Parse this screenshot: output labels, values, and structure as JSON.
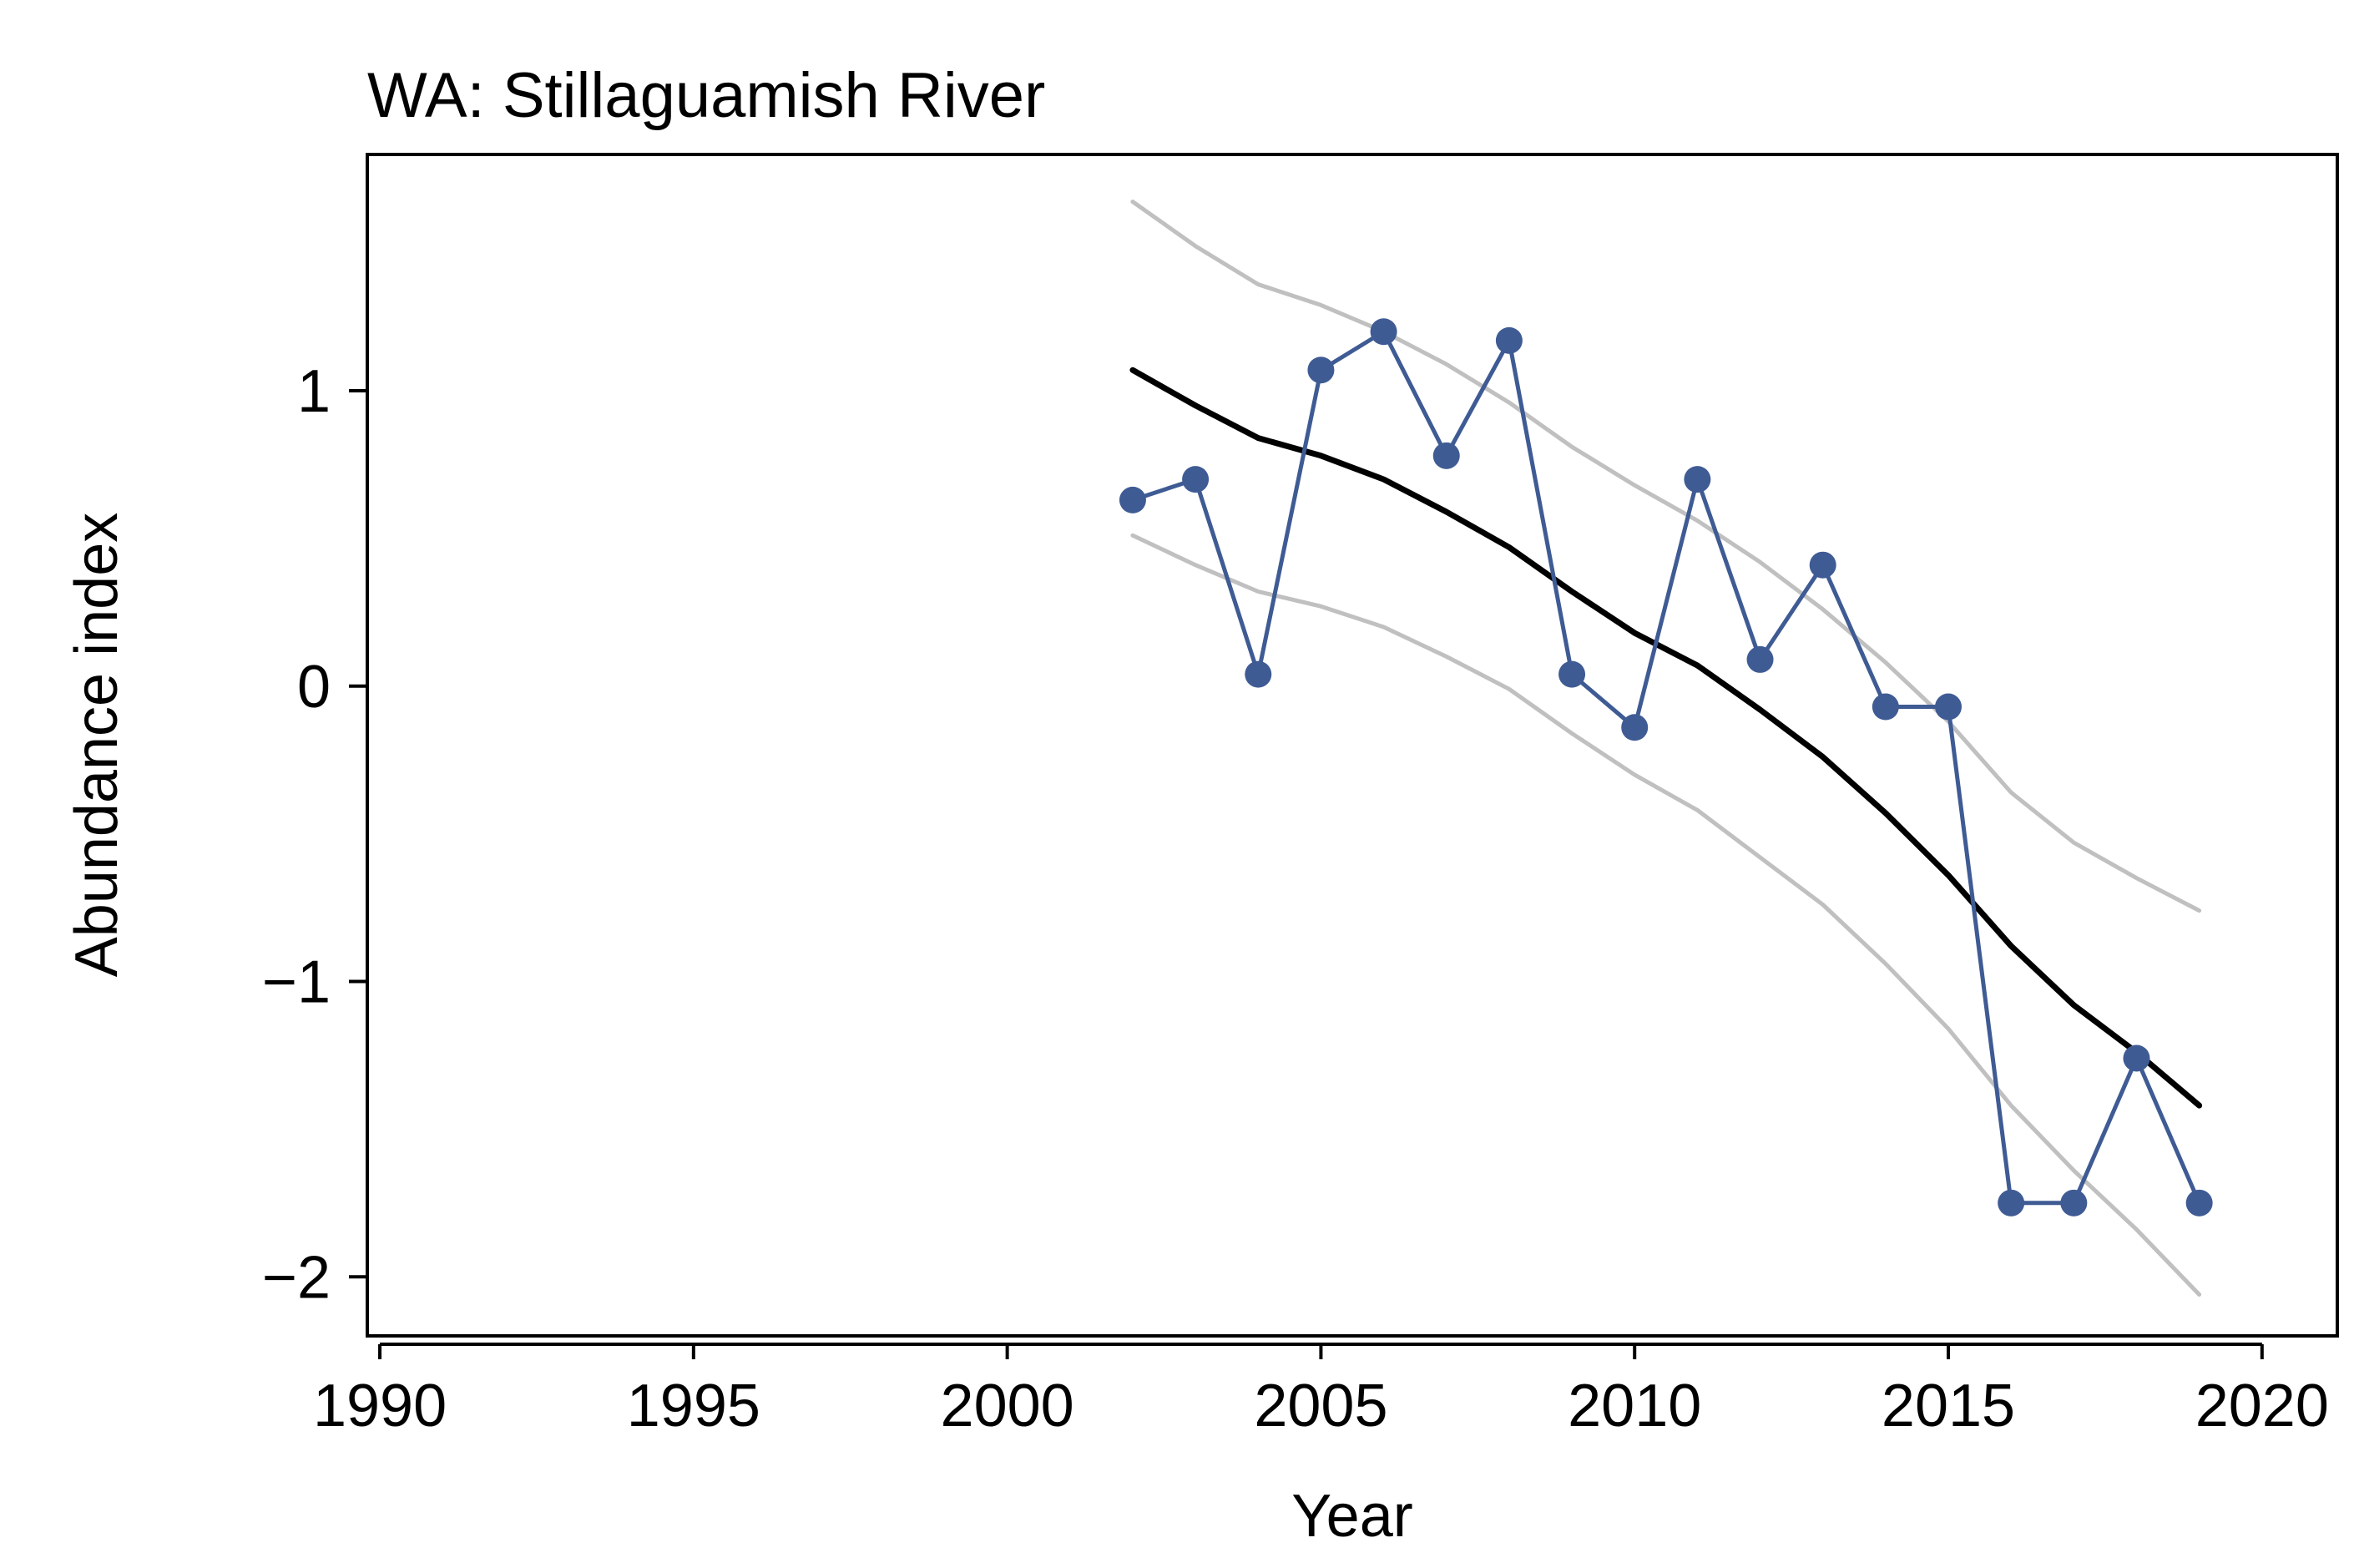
{
  "chart_data": {
    "type": "line",
    "title": "WA: Stillaguamish River",
    "xlabel": "Year",
    "ylabel": "Abundance index",
    "xlim": [
      1989.8,
      2021.2
    ],
    "ylim": [
      -2.2,
      1.8
    ],
    "xticks": [
      1990,
      1995,
      2000,
      2005,
      2010,
      2015,
      2020
    ],
    "xtick_labels": [
      "1990",
      "1995",
      "2000",
      "2005",
      "2010",
      "2015",
      "2020"
    ],
    "yticks": [
      -2,
      -1,
      0,
      1
    ],
    "ytick_labels": [
      "−2",
      "−1",
      "0",
      "1"
    ],
    "grid": false,
    "x": [
      2002,
      2003,
      2004,
      2005,
      2006,
      2007,
      2008,
      2009,
      2010,
      2011,
      2012,
      2013,
      2014,
      2015,
      2016,
      2017,
      2018,
      2019
    ],
    "series": [
      {
        "role": "observed",
        "color": "#3f5b94",
        "values": [
          0.63,
          0.7,
          0.04,
          1.07,
          1.2,
          0.78,
          1.17,
          0.04,
          -0.14,
          0.7,
          0.09,
          0.41,
          -0.07,
          -0.07,
          -1.75,
          -1.75,
          -1.26,
          -1.75
        ]
      },
      {
        "role": "trend",
        "color": "#000000",
        "values": [
          1.07,
          0.95,
          0.84,
          0.78,
          0.7,
          0.59,
          0.47,
          0.32,
          0.18,
          0.07,
          -0.08,
          -0.24,
          -0.43,
          -0.64,
          -0.88,
          -1.08,
          -1.24,
          -1.42
        ]
      },
      {
        "role": "upper-bound",
        "color": "#c0c0c0",
        "values": [
          1.64,
          1.49,
          1.36,
          1.29,
          1.2,
          1.09,
          0.96,
          0.81,
          0.68,
          0.56,
          0.42,
          0.26,
          0.08,
          -0.12,
          -0.36,
          -0.53,
          -0.65,
          -0.76
        ]
      },
      {
        "role": "lower-bound",
        "color": "#c0c0c0",
        "values": [
          0.51,
          0.41,
          0.32,
          0.27,
          0.2,
          0.1,
          -0.01,
          -0.16,
          -0.3,
          -0.42,
          -0.58,
          -0.74,
          -0.94,
          -1.16,
          -1.42,
          -1.64,
          -1.84,
          -2.06
        ]
      }
    ]
  }
}
